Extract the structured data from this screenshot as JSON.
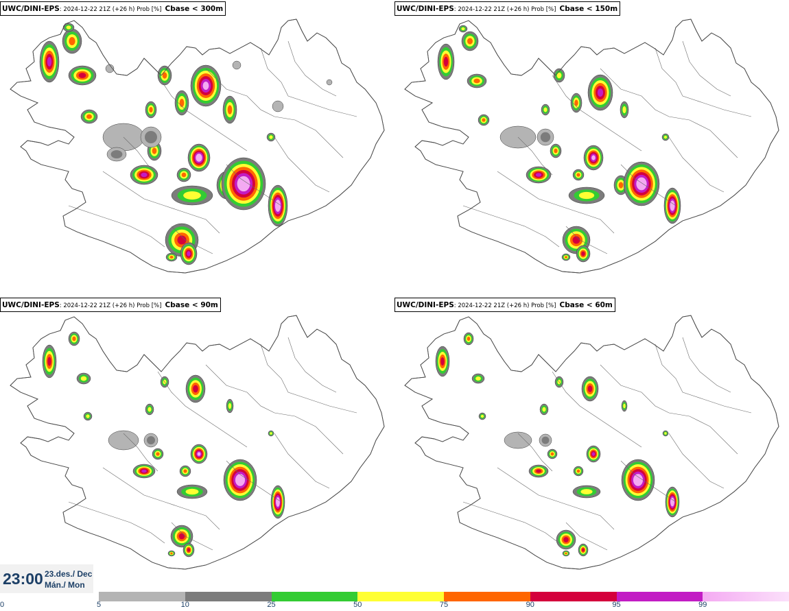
{
  "panels": [
    {
      "model": "UWC/DINI-EPS",
      "run": ": 2024-12-22 21Z (+26 h) Prob [%]",
      "param": "Cbase < 300m"
    },
    {
      "model": "UWC/DINI-EPS",
      "run": ": 2024-12-22 21Z (+26 h) Prob [%]",
      "param": "Cbase < 150m"
    },
    {
      "model": "UWC/DINI-EPS",
      "run": ": 2024-12-22 21Z (+26 h) Prob [%]",
      "param": "Cbase < 90m"
    },
    {
      "model": "UWC/DINI-EPS",
      "run": ": 2024-12-22 21Z (+26 h) Prob [%]",
      "param": "Cbase < 60m"
    }
  ],
  "valid_time": {
    "time": "23:00",
    "date_line1": "23.des./ Dec",
    "date_line2": "Mán./ Mon"
  },
  "colorbar": {
    "labels": [
      "0",
      "5",
      "10",
      "25",
      "50",
      "75",
      "90",
      "95",
      "99"
    ],
    "colors": [
      "#b4b4b4",
      "#7c7c7c",
      "#33cc33",
      "#ffff33",
      "#ff6600",
      "#d4003c",
      "#c21cc4",
      "#f4aaf2"
    ],
    "gradient_last_end": "#fbe0fa"
  },
  "map_colors": {
    "outline": "#4a4a4a",
    "p10": "#b4b4b4",
    "p25": "#7c7c7c",
    "p50": "#33cc33",
    "p75": "#ffff33",
    "p90": "#ff6600",
    "p95": "#d4003c",
    "p99": "#c21cc4",
    "p100": "#f4aaf2"
  }
}
